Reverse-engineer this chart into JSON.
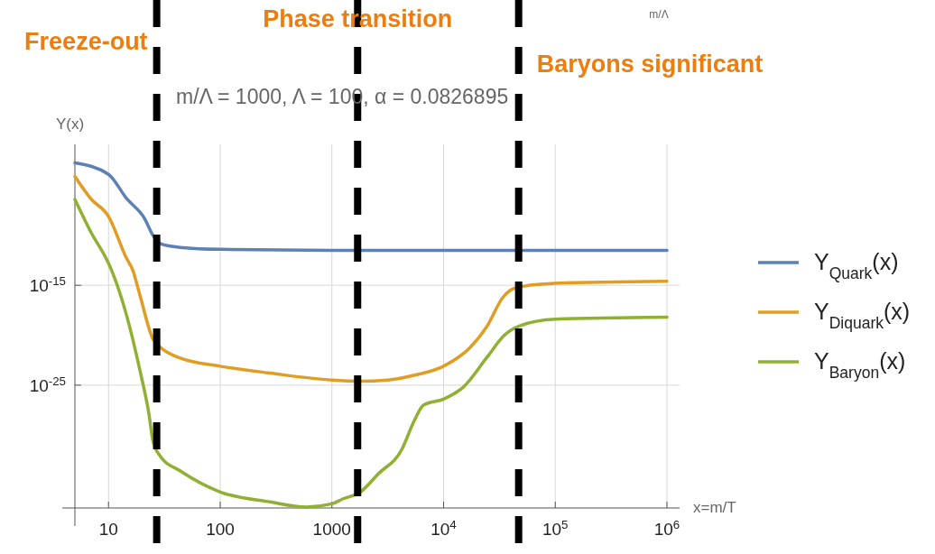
{
  "chart_data": {
    "type": "line",
    "title": "m/Λ = 1000, Λ = 100, α = 0.0826895",
    "xlabel": "x=m/T",
    "ylabel": "Y(x)",
    "annotations": [
      "m/Λ"
    ],
    "log": "xy",
    "grid": true,
    "legend": "right",
    "line_style": "solid",
    "marker": "none",
    "xlim": [
      5,
      1000000
    ],
    "xticks": [
      10,
      100,
      1000,
      {
        "value": 10000,
        "label": "10$^{4}$"
      },
      {
        "value": 100000,
        "label": "10$^{5}$"
      },
      {
        "value": 1000000,
        "label": "10$^{6}$"
      }
    ],
    "ylim": [
      5e-38,
      0.13
    ],
    "yticks": [
      {
        "value": 1e-15,
        "label": "10$^{-15}$"
      },
      {
        "value": 1e-25,
        "label": "10$^{-25}$"
      }
    ],
    "ref_lines": [
      {
        "axis": "x",
        "value": 27,
        "label": "Freeze-out",
        "color": "#000000",
        "line_style": "dashed"
      },
      {
        "axis": "x",
        "value": 1700,
        "label": "Phase transition",
        "color": "#000000",
        "line_style": "dashed"
      },
      {
        "axis": "x",
        "value": 47000,
        "label": "Baryons significant",
        "color": "#000000",
        "line_style": "dashed"
      }
    ],
    "series": [
      {
        "name": "Y$_{Quark}$(x)",
        "color": "#5e81b5",
        "x": [
          5,
          10,
          14.5,
          21,
          25,
          30,
          44,
          100,
          1000,
          10000,
          100000,
          1000000
        ],
        "values": [
          0.0018,
          0.00013,
          5e-07,
          5e-09,
          1e-10,
          1.3e-11,
          6.3e-12,
          4e-12,
          3.2e-12,
          3.2e-12,
          3.2e-12,
          3.2e-12
        ]
      },
      {
        "name": "Y$_{Diquark}$(x)",
        "color": "#e19c24",
        "x": [
          5,
          6.9,
          10,
          14.5,
          16.5,
          19,
          25,
          29,
          44,
          100,
          280,
          1000,
          1800,
          3150,
          5500,
          10000,
          17000,
          24500,
          34000,
          43000,
          74000,
          100000,
          1000000
        ],
        "values": [
          7.9e-05,
          5e-07,
          7.9e-09,
          5e-13,
          3.2e-14,
          1.3e-16,
          4e-21,
          6.3e-22,
          5e-23,
          7.9e-24,
          1.6e-24,
          3.2e-25,
          2.5e-25,
          3.2e-25,
          1e-24,
          7.9e-24,
          5e-22,
          7.9e-20,
          6.3e-17,
          5e-16,
          1.3e-15,
          1.6e-15,
          2.5e-15
        ]
      },
      {
        "name": "Y$_{Baryon}$(x)",
        "color": "#8fb032",
        "x": [
          5,
          6.9,
          10,
          11,
          14.5,
          19,
          23,
          25,
          29,
          44,
          100,
          280,
          590,
          1000,
          1250,
          1800,
          2600,
          4200,
          5500,
          6600,
          10000,
          15000,
          24500,
          35000,
          47000,
          100000,
          1000000
        ],
        "values": [
          4e-07,
          2.5e-10,
          1.6e-13,
          1.3e-14,
          1e-18,
          4e-24,
          1.3e-28,
          2.5e-31,
          7.9e-33,
          2.5e-34,
          2e-36,
          2e-37,
          6.3e-38,
          1.3e-37,
          4e-37,
          2e-36,
          1.3e-34,
          3.2e-32,
          3.2e-29,
          1e-27,
          4e-27,
          6.3e-26,
          6.3e-23,
          1e-20,
          7.9e-20,
          4e-19,
          6.3e-19
        ]
      }
    ]
  }
}
